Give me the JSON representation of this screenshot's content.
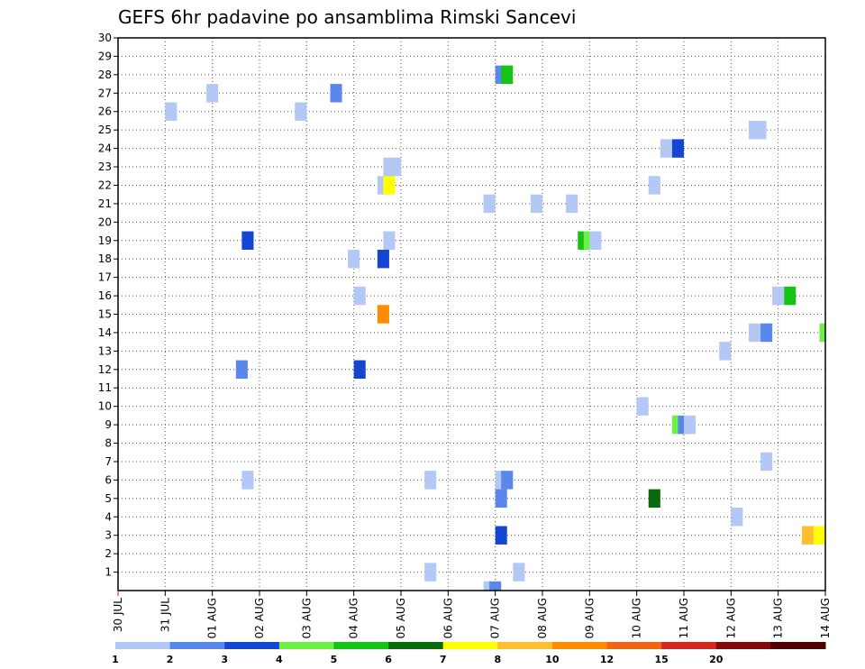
{
  "chart_data": {
    "type": "heatmap",
    "title": "GEFS 6hr padavine po ansamblima Rimski Sancevi",
    "xlabel": "",
    "ylabel": "",
    "x_tick_labels": [
      "30 JUL",
      "31 JUL",
      "01 AUG",
      "02 AUG",
      "03 AUG",
      "04 AUG",
      "05 AUG",
      "06 AUG",
      "07 AUG",
      "08 AUG",
      "09 AUG",
      "10 AUG",
      "11 AUG",
      "12 AUG",
      "13 AUG",
      "14 AUG"
    ],
    "y_tick_labels": [
      1,
      2,
      3,
      4,
      5,
      6,
      7,
      8,
      9,
      10,
      11,
      12,
      13,
      14,
      15,
      16,
      17,
      18,
      19,
      20,
      21,
      22,
      23,
      24,
      25,
      26,
      27,
      28,
      29,
      30
    ],
    "xlim_days": [
      0,
      15
    ],
    "ylim": [
      0,
      30
    ],
    "grid": true,
    "legend_position": "bottom",
    "legend_bins": [
      {
        "label": "1",
        "color": "#b4c8f5"
      },
      {
        "label": "2",
        "color": "#5a87eb"
      },
      {
        "label": "3",
        "color": "#1446d2"
      },
      {
        "label": "4",
        "color": "#6ef046"
      },
      {
        "label": "5",
        "color": "#14c314"
      },
      {
        "label": "6",
        "color": "#0a690a"
      },
      {
        "label": "7",
        "color": "#ffff00"
      },
      {
        "label": "8",
        "color": "#ffbe32"
      },
      {
        "label": "10",
        "color": "#ff8c00"
      },
      {
        "label": "12",
        "color": "#f06414"
      },
      {
        "label": "15",
        "color": "#d2281e"
      },
      {
        "label": "20",
        "color": "#820a0a"
      },
      {
        "label": "",
        "color": "#500000"
      }
    ],
    "cells": [
      [
        1.125,
        26,
        0
      ],
      [
        2.0,
        27,
        0
      ],
      [
        2.75,
        19,
        2
      ],
      [
        2.625,
        12,
        1
      ],
      [
        2.75,
        6,
        0
      ],
      [
        3.875,
        26,
        0
      ],
      [
        4.625,
        27,
        1
      ],
      [
        5.0,
        18,
        0
      ],
      [
        5.125,
        16,
        0
      ],
      [
        5.125,
        12,
        2
      ],
      [
        5.625,
        22,
        0
      ],
      [
        5.625,
        18,
        2
      ],
      [
        5.625,
        15,
        8
      ],
      [
        5.75,
        22,
        6
      ],
      [
        5.75,
        23,
        0
      ],
      [
        5.875,
        23,
        0
      ],
      [
        5.75,
        19,
        0
      ],
      [
        6.625,
        6,
        0
      ],
      [
        6.625,
        1,
        0
      ],
      [
        7.875,
        21,
        0
      ],
      [
        7.875,
        0,
        0
      ],
      [
        8.0,
        0,
        1
      ],
      [
        8.125,
        28,
        1
      ],
      [
        8.25,
        28,
        4
      ],
      [
        8.125,
        6,
        0
      ],
      [
        8.25,
        6,
        1
      ],
      [
        8.125,
        5,
        1
      ],
      [
        8.125,
        3,
        2
      ],
      [
        8.5,
        1,
        0
      ],
      [
        8.875,
        21,
        0
      ],
      [
        9.625,
        21,
        0
      ],
      [
        9.875,
        19,
        4
      ],
      [
        10.0,
        19,
        3
      ],
      [
        10.125,
        19,
        0
      ],
      [
        11.125,
        10,
        0
      ],
      [
        11.375,
        22,
        0
      ],
      [
        11.375,
        5,
        5
      ],
      [
        11.625,
        24,
        0
      ],
      [
        11.875,
        24,
        2
      ],
      [
        11.875,
        9,
        3
      ],
      [
        12.0,
        9,
        1
      ],
      [
        12.125,
        9,
        0
      ],
      [
        12.875,
        13,
        0
      ],
      [
        13.125,
        4,
        0
      ],
      [
        13.5,
        25,
        0
      ],
      [
        13.625,
        25,
        0
      ],
      [
        13.5,
        14,
        0
      ],
      [
        13.75,
        14,
        1
      ],
      [
        13.75,
        7,
        0
      ],
      [
        14.0,
        16,
        0
      ],
      [
        14.25,
        16,
        4
      ],
      [
        14.625,
        3,
        7
      ],
      [
        14.875,
        3,
        6
      ],
      [
        15.0,
        14,
        3
      ]
    ]
  }
}
